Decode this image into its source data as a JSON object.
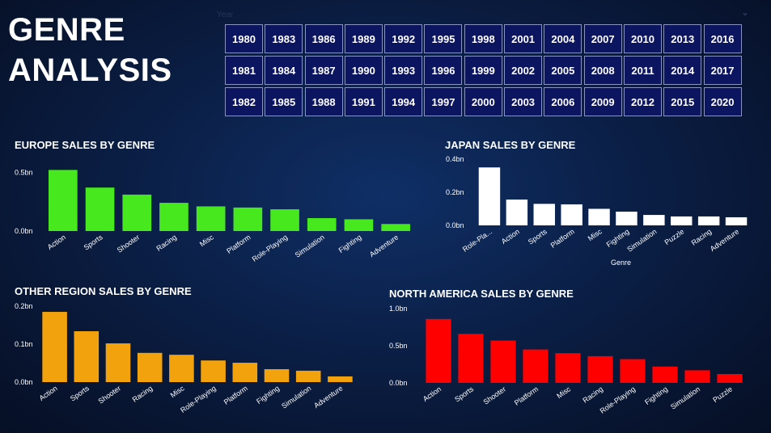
{
  "title": "GENRE ANALYSIS",
  "slicer": {
    "label": "Year",
    "rows": [
      [
        1980,
        1983,
        1986,
        1989,
        1992,
        1995,
        1998,
        2001,
        2004,
        2007,
        2010,
        2013,
        2016
      ],
      [
        1981,
        1984,
        1987,
        1990,
        1993,
        1996,
        1999,
        2002,
        2005,
        2008,
        2011,
        2014,
        2017
      ],
      [
        1982,
        1985,
        1988,
        1991,
        1994,
        1997,
        2000,
        2003,
        2006,
        2009,
        2012,
        2015,
        2020
      ]
    ]
  },
  "chart_data": [
    {
      "type": "bar",
      "title": "EUROPE SALES BY GENRE",
      "color": "#47e81d",
      "categories": [
        "Action",
        "Sports",
        "Shooter",
        "Racing",
        "Misc",
        "Platform",
        "Role-Playing",
        "Simulation",
        "Fighting",
        "Adventure"
      ],
      "values": [
        0.52,
        0.37,
        0.31,
        0.24,
        0.21,
        0.2,
        0.185,
        0.11,
        0.1,
        0.06
      ],
      "ylim": [
        0,
        0.55
      ],
      "yticks": [
        {
          "value": 0,
          "label": "0.0bn"
        },
        {
          "value": 0.5,
          "label": "0.5bn"
        }
      ]
    },
    {
      "type": "bar",
      "title": "JAPAN SALES BY GENRE",
      "color": "#ffffff",
      "x_label": "Genre",
      "categories": [
        "Role-Pla...",
        "Action",
        "Sports",
        "Platform",
        "Misc",
        "Fighting",
        "Simulation",
        "Puzzle",
        "Racing",
        "Adventure"
      ],
      "values": [
        0.35,
        0.156,
        0.13,
        0.127,
        0.1,
        0.083,
        0.063,
        0.054,
        0.054,
        0.049
      ],
      "ylim": [
        0,
        0.4
      ],
      "yticks": [
        {
          "value": 0,
          "label": "0.0bn"
        },
        {
          "value": 0.2,
          "label": "0.2bn"
        },
        {
          "value": 0.4,
          "label": "0.4bn"
        }
      ]
    },
    {
      "type": "bar",
      "title": "OTHER REGION SALES BY GENRE",
      "color": "#f2a20c",
      "categories": [
        "Action",
        "Sports",
        "Shooter",
        "Racing",
        "Misc",
        "Role-Playing",
        "Platform",
        "Fighting",
        "Simulation",
        "Adventure"
      ],
      "values": [
        0.185,
        0.134,
        0.102,
        0.077,
        0.072,
        0.057,
        0.051,
        0.034,
        0.03,
        0.015
      ],
      "ylim": [
        0,
        0.2
      ],
      "yticks": [
        {
          "value": 0,
          "label": "0.0bn"
        },
        {
          "value": 0.1,
          "label": "0.1bn"
        },
        {
          "value": 0.2,
          "label": "0.2bn"
        }
      ]
    },
    {
      "type": "bar",
      "title": "NORTH AMERICA SALES BY GENRE",
      "color": "#ff0000",
      "categories": [
        "Action",
        "Sports",
        "Shooter",
        "Platform",
        "Misc",
        "Racing",
        "Role-Playing",
        "Fighting",
        "Simulation",
        "Puzzle"
      ],
      "values": [
        0.86,
        0.66,
        0.57,
        0.45,
        0.4,
        0.36,
        0.32,
        0.22,
        0.17,
        0.12
      ],
      "ylim": [
        0,
        1
      ],
      "yticks": [
        {
          "value": 0,
          "label": "0.0bn"
        },
        {
          "value": 0.5,
          "label": "0.5bn"
        },
        {
          "value": 1,
          "label": "1.0bn"
        }
      ]
    }
  ]
}
